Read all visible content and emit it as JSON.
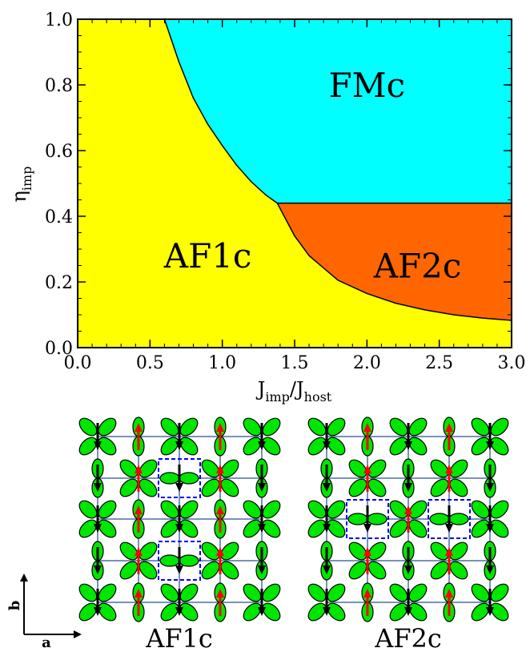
{
  "chart_data": {
    "type": "area",
    "xlabel": {
      "base": "J",
      "sub1": "imp",
      "mid": "/J",
      "sub2": "host"
    },
    "ylabel": {
      "base": "η",
      "sub": "imp"
    },
    "xlim": [
      0.0,
      3.0
    ],
    "ylim": [
      0.0,
      1.0
    ],
    "x_ticks": [
      "0.0",
      "0.5",
      "1.0",
      "1.5",
      "2.0",
      "2.5",
      "3.0"
    ],
    "y_ticks": [
      "0.0",
      "0.2",
      "0.4",
      "0.6",
      "0.8",
      "1.0"
    ],
    "grid": false,
    "regions": [
      {
        "name": "AF1c",
        "color": "#ffff00",
        "label_at": [
          0.9,
          0.28
        ]
      },
      {
        "name": "FMc",
        "color": "#00ffff",
        "label_at": [
          2.0,
          0.8
        ]
      },
      {
        "name": "AF2c",
        "color": "#ff6600",
        "label_at": [
          2.35,
          0.25
        ]
      }
    ],
    "boundary_fmc": [
      [
        0.6,
        1.0
      ],
      [
        0.7,
        0.87
      ],
      [
        0.8,
        0.76
      ],
      [
        0.9,
        0.68
      ],
      [
        1.0,
        0.615
      ],
      [
        1.1,
        0.555
      ],
      [
        1.2,
        0.505
      ],
      [
        1.3,
        0.465
      ],
      [
        1.38,
        0.44
      ]
    ],
    "boundary_af2c_top": 0.44,
    "boundary_af2c": [
      [
        1.38,
        0.44
      ],
      [
        1.5,
        0.34
      ],
      [
        1.6,
        0.28
      ],
      [
        1.8,
        0.205
      ],
      [
        2.0,
        0.165
      ],
      [
        2.2,
        0.135
      ],
      [
        2.4,
        0.115
      ],
      [
        2.6,
        0.1
      ],
      [
        2.8,
        0.09
      ],
      [
        3.0,
        0.083
      ]
    ]
  },
  "diagrams": {
    "af1c_caption": "AF1c",
    "af2c_caption": "AF2c",
    "axis_b": "b",
    "axis_a": "a",
    "colors": {
      "orbital": "#00e600",
      "spin_up": "#ff0000",
      "spin_down": "#000000",
      "bond": "#4a6fa5",
      "box": "#0000ff"
    }
  }
}
